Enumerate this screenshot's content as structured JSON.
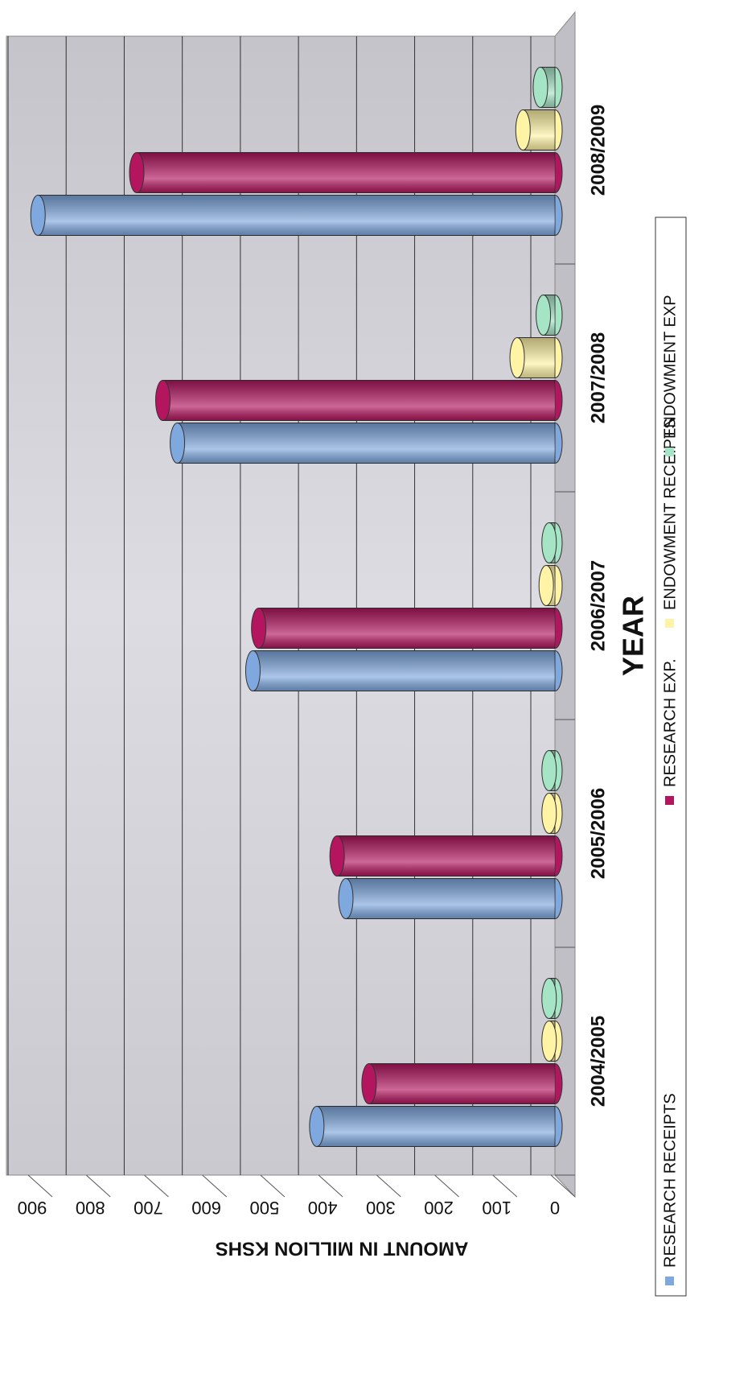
{
  "chart_data": {
    "type": "bar",
    "x_label": "YEAR",
    "y_label": "AMOUNT IN MILLION KSHS",
    "categories": [
      "2004/2005",
      "2005/2006",
      "2006/2007",
      "2007/2008",
      "2008/2009"
    ],
    "series": [
      {
        "name": "RESEARCH RECEIPTS",
        "color": "#7fa8de",
        "values": [
          410,
          360,
          520,
          650,
          890
        ]
      },
      {
        "name": "RESEARCH EXP.",
        "color": "#b3165f",
        "values": [
          320,
          375,
          510,
          675,
          720
        ]
      },
      {
        "name": "ENDOWMENT RECEIPTS",
        "color": "#fff3a6",
        "values": [
          10,
          10,
          15,
          65,
          55
        ]
      },
      {
        "name": "ENDOWMENT EXP",
        "color": "#a6e4c6",
        "values": [
          10,
          10,
          10,
          20,
          25
        ]
      }
    ],
    "ylim": [
      0,
      900
    ],
    "yticks": [
      0,
      100,
      200,
      300,
      400,
      500,
      600,
      700,
      800,
      900
    ],
    "grid": true,
    "legend": "bottom"
  }
}
